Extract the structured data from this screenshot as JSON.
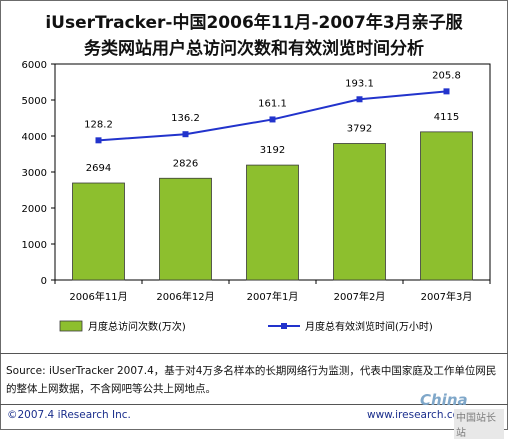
{
  "title_line1": "iUserTracker-中国2006年11月-2007年3月亲子服",
  "title_line2": "务类网站用户总访问次数和有效浏览时间分析",
  "chart_data": {
    "type": "bar+line",
    "categories": [
      "2006年11月",
      "2006年12月",
      "2007年1月",
      "2007年2月",
      "2007年3月"
    ],
    "series": [
      {
        "name": "月度总访问次数(万次)",
        "type": "bar",
        "values": [
          2694,
          2826,
          3192,
          3792,
          4115
        ],
        "color": "#8dbf2e"
      },
      {
        "name": "月度总有效浏览时间(万小时)",
        "type": "line",
        "values": [
          128.2,
          136.2,
          161.1,
          193.1,
          205.8
        ],
        "color": "#2233cc"
      }
    ],
    "ylim": [
      0,
      6000
    ],
    "yticks": [
      0,
      1000,
      2000,
      3000,
      4000,
      5000,
      6000
    ],
    "line_positions_on_axis": [
      3880,
      4050,
      4460,
      5020,
      5240
    ],
    "legend_position": "bottom",
    "grid": false
  },
  "source_text": "Source:  iUserTracker 2007.4，基于对4万多名样本的长期网络行为监测，代表中国家庭及工作单位网民的整体上网数据，不含网吧等公共上网地点。",
  "copyright": "©2007.4 iResearch Inc.",
  "website": "www.iresearch.com.cn",
  "watermark": {
    "brand": "China",
    "sub": "中国站长站"
  }
}
